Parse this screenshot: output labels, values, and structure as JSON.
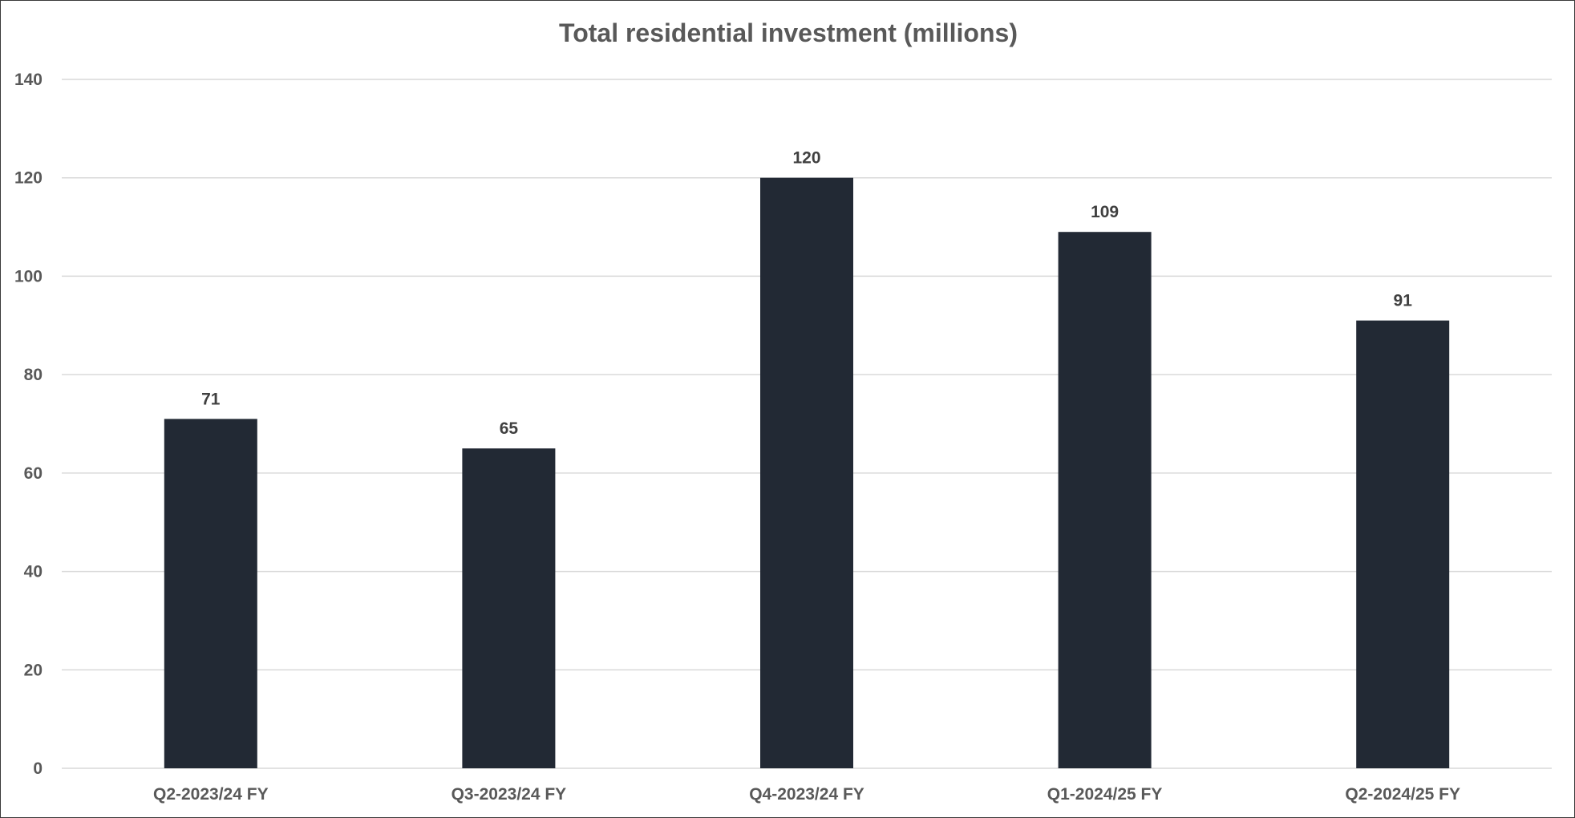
{
  "chart_data": {
    "type": "bar",
    "title": "Total residential investment (millions)",
    "categories": [
      "Q2-2023/24 FY",
      "Q3-2023/24 FY",
      "Q4-2023/24 FY",
      "Q1-2024/25 FY",
      "Q2-2024/25 FY"
    ],
    "values": [
      71,
      65,
      120,
      109,
      91
    ],
    "data_labels": [
      "71",
      "65",
      "120",
      "109",
      "91"
    ],
    "xlabel": "",
    "ylabel": "",
    "ylim": [
      0,
      140
    ],
    "y_ticks": [
      "0",
      "20",
      "40",
      "60",
      "80",
      "100",
      "120",
      "140"
    ],
    "grid": true,
    "legend": "none",
    "colors": {
      "bar": "#222934",
      "grid": "#d9d9d9",
      "axis_text": "#595959",
      "title": "#595959",
      "data_label": "#404040"
    }
  }
}
